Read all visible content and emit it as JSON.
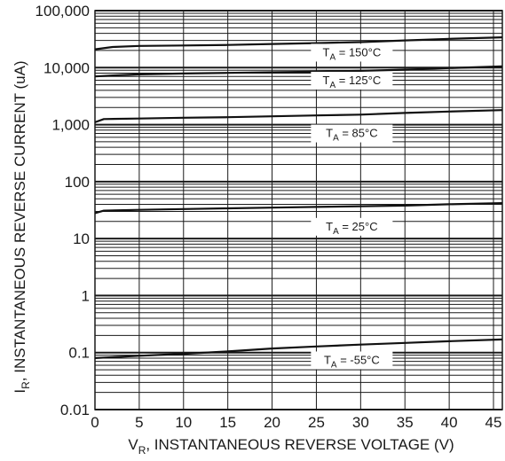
{
  "chart_data": {
    "type": "line",
    "xlabel": {
      "main": "V",
      "sub": "R",
      "rest": ", INSTANTANEOUS REVERSE VOLTAGE (V)"
    },
    "ylabel": {
      "main": "I",
      "sub": "R",
      "rest": ", INSTANTANEOUS REVERSE CURRENT (uA)"
    },
    "xlim": [
      0,
      46
    ],
    "ylim": [
      0.01,
      100000
    ],
    "y_scale": "log",
    "x_ticks": [
      0,
      5,
      10,
      15,
      20,
      25,
      30,
      35,
      40,
      45
    ],
    "y_ticks": [
      {
        "value": 100000,
        "label": "100,000"
      },
      {
        "value": 10000,
        "label": "10,000"
      },
      {
        "value": 1000,
        "label": "1,000"
      },
      {
        "value": 100,
        "label": "100"
      },
      {
        "value": 10,
        "label": "10"
      },
      {
        "value": 1,
        "label": "1"
      },
      {
        "value": 0.1,
        "label": "0.1"
      },
      {
        "value": 0.01,
        "label": "0.01"
      }
    ],
    "grid": true,
    "series": [
      {
        "name": "T_A = 150°C",
        "name_main": "T",
        "name_sub": "A",
        "name_rest": " = 150°C",
        "label_at": [
          29,
          17000
        ],
        "x": [
          0,
          2,
          5,
          10,
          15,
          20,
          25,
          30,
          35,
          40,
          46
        ],
        "y": [
          21000,
          23000,
          24000,
          24500,
          25000,
          26000,
          27000,
          28000,
          30000,
          32000,
          34000
        ]
      },
      {
        "name": "T_A = 125°C",
        "name_main": "T",
        "name_sub": "A",
        "name_rest": " = 125°C",
        "label_at": [
          29,
          5500
        ],
        "x": [
          0,
          2,
          5,
          10,
          15,
          20,
          25,
          30,
          35,
          40,
          46
        ],
        "y": [
          7000,
          7300,
          7600,
          7900,
          8100,
          8300,
          8500,
          8800,
          9200,
          9800,
          10500
        ]
      },
      {
        "name": "T_A = 85°C",
        "name_main": "T",
        "name_sub": "A",
        "name_rest": " = 85°C",
        "label_at": [
          29,
          650
        ],
        "x": [
          0,
          1,
          5,
          10,
          15,
          20,
          25,
          30,
          35,
          40,
          46
        ],
        "y": [
          1100,
          1250,
          1280,
          1320,
          1350,
          1400,
          1450,
          1500,
          1600,
          1700,
          1800
        ]
      },
      {
        "name": "T_A = 25°C",
        "name_main": "T",
        "name_sub": "A",
        "name_rest": " = 25°C",
        "label_at": [
          29,
          15
        ],
        "x": [
          0,
          1,
          5,
          10,
          15,
          20,
          25,
          30,
          35,
          40,
          46
        ],
        "y": [
          28,
          31,
          32,
          33,
          34,
          35,
          36,
          37,
          38,
          40,
          42
        ]
      },
      {
        "name": "T_A = -55°C",
        "name_main": "T",
        "name_sub": "A",
        "name_rest": " = -55°C",
        "label_at": [
          29,
          0.068
        ],
        "x": [
          0,
          5,
          10,
          15,
          20,
          25,
          30,
          35,
          40,
          46
        ],
        "y": [
          0.08,
          0.088,
          0.095,
          0.105,
          0.118,
          0.128,
          0.138,
          0.148,
          0.158,
          0.17
        ]
      }
    ]
  }
}
